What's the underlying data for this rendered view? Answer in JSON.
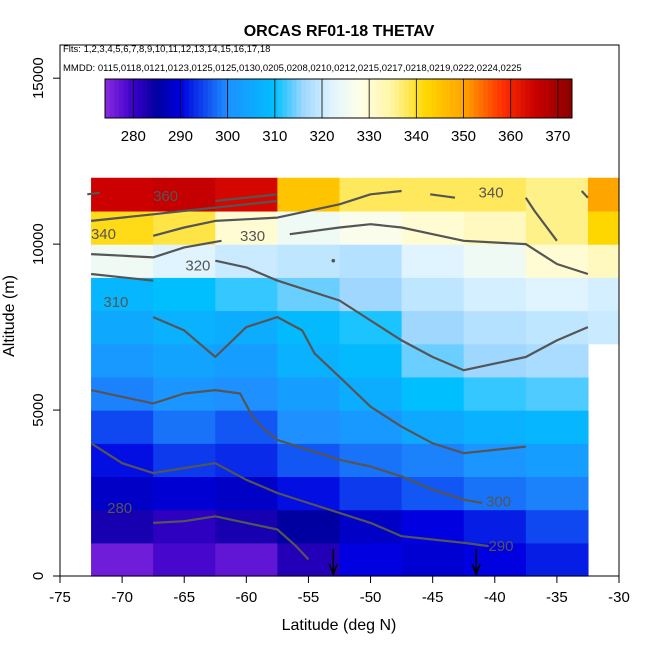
{
  "chart_data": {
    "type": "heatmap",
    "title": "ORCAS RF01-18 THETAV",
    "subtitle_flights": "Flts: 1,2,3,4,5,6,7,8,9,10,11,12,13,14,15,16,17,18",
    "subtitle_dates": "MMDD: 0115,0118,0121,0123,0125,0125,0130,0205,0208,0210,0212,0215,0217,0218,0219,0222,0224,0225",
    "xlabel": "Latitude (deg N)",
    "ylabel": "Altitude (m)",
    "xlim": [
      -75,
      -30
    ],
    "ylim": [
      0,
      16000
    ],
    "x_ticks": [
      -75,
      -70,
      -65,
      -60,
      -55,
      -50,
      -45,
      -40,
      -35,
      -30
    ],
    "y_ticks": [
      0,
      5000,
      10000,
      15000
    ],
    "colorbar": {
      "ticks": [
        280,
        290,
        300,
        310,
        320,
        330,
        340,
        350,
        360,
        370
      ],
      "range": [
        274,
        373
      ],
      "stops": [
        {
          "v": 274,
          "c": "#8a2be2"
        },
        {
          "v": 280,
          "c": "#3a00c8"
        },
        {
          "v": 285,
          "c": "#0000a0"
        },
        {
          "v": 290,
          "c": "#0000e0"
        },
        {
          "v": 300,
          "c": "#1e90ff"
        },
        {
          "v": 310,
          "c": "#00bfff"
        },
        {
          "v": 316,
          "c": "#9fd7ff"
        },
        {
          "v": 322,
          "c": "#dff4ff"
        },
        {
          "v": 328,
          "c": "#ffffe8"
        },
        {
          "v": 335,
          "c": "#fff5a0"
        },
        {
          "v": 342,
          "c": "#ffd700"
        },
        {
          "v": 350,
          "c": "#ffa500"
        },
        {
          "v": 358,
          "c": "#ff3300"
        },
        {
          "v": 365,
          "c": "#cc0000"
        },
        {
          "v": 373,
          "c": "#8b0000"
        }
      ]
    },
    "lat_edges": [
      -75,
      -72.5,
      -67.5,
      -62.5,
      -57.5,
      -52.5,
      -47.5,
      -42.5,
      -37.5,
      -32.5,
      -30
    ],
    "alt_edges": [
      0,
      1000,
      2000,
      3000,
      4000,
      5000,
      6000,
      7000,
      8000,
      9000,
      10000,
      11000,
      12000
    ],
    "values": [
      [
        null,
        276,
        279,
        277,
        282,
        290,
        289,
        290,
        292,
        null
      ],
      [
        null,
        283,
        281,
        283,
        285,
        288,
        290,
        292,
        295,
        null
      ],
      [
        null,
        288,
        289,
        288,
        291,
        294,
        296,
        298,
        299,
        null
      ],
      [
        null,
        291,
        294,
        293,
        296,
        298,
        299,
        301,
        303,
        null
      ],
      [
        null,
        295,
        298,
        296,
        300,
        302,
        305,
        307,
        308,
        null
      ],
      [
        null,
        299,
        301,
        300,
        303,
        306,
        310,
        312,
        313,
        null
      ],
      [
        null,
        302,
        304,
        303,
        307,
        309,
        314,
        316,
        317,
        null
      ],
      [
        null,
        305,
        307,
        306,
        309,
        311,
        316,
        318,
        319,
        320
      ],
      [
        null,
        308,
        310,
        312,
        314,
        316,
        319,
        321,
        322,
        321
      ],
      [
        null,
        325,
        322,
        320,
        319,
        318,
        322,
        325,
        330,
        332
      ],
      [
        null,
        341,
        339,
        330,
        325,
        327,
        330,
        332,
        336,
        342
      ],
      [
        null,
        365,
        366,
        364,
        345,
        338,
        338,
        338,
        336,
        350
      ]
    ],
    "contours": [
      {
        "label": "280",
        "label_at": [
          -70.2,
          1900
        ],
        "points": [
          [
            -67.5,
            1600
          ],
          [
            -65,
            1650
          ],
          [
            -62.5,
            1800
          ],
          [
            -60,
            1600
          ],
          [
            -57.5,
            1400
          ],
          [
            -56,
            900
          ],
          [
            -55,
            500
          ]
        ]
      },
      {
        "label": "290",
        "label_at": [
          -39.5,
          750
        ],
        "points": [
          [
            -72.5,
            4000
          ],
          [
            -70,
            3400
          ],
          [
            -67.5,
            3100
          ],
          [
            -65,
            3250
          ],
          [
            -62.5,
            3400
          ],
          [
            -60,
            2900
          ],
          [
            -57.5,
            2500
          ],
          [
            -55,
            2200
          ],
          [
            -52.5,
            1900
          ],
          [
            -50,
            1600
          ],
          [
            -47.5,
            1200
          ],
          [
            -45,
            1100
          ],
          [
            -42.5,
            1000
          ],
          [
            -40.5,
            900
          ]
        ]
      },
      {
        "label": "300",
        "label_at": [
          -39.7,
          2100
        ],
        "points": [
          [
            -72.5,
            5600
          ],
          [
            -70,
            5400
          ],
          [
            -67.5,
            5200
          ],
          [
            -65,
            5500
          ],
          [
            -62.5,
            5600
          ],
          [
            -60.5,
            5500
          ],
          [
            -59.5,
            4800
          ],
          [
            -58.5,
            4400
          ],
          [
            -57.5,
            4100
          ],
          [
            -55,
            3800
          ],
          [
            -52.5,
            3500
          ],
          [
            -50,
            3300
          ],
          [
            -47.5,
            3000
          ],
          [
            -45,
            2600
          ],
          [
            -42.5,
            2300
          ],
          [
            -41,
            2200
          ]
        ]
      },
      {
        "label": "",
        "label_at": null,
        "points": [
          [
            -67.5,
            7800
          ],
          [
            -65,
            7400
          ],
          [
            -62.5,
            6600
          ],
          [
            -60,
            7500
          ],
          [
            -57.5,
            7800
          ],
          [
            -55.5,
            7400
          ],
          [
            -54.5,
            6700
          ],
          [
            -52.5,
            6000
          ],
          [
            -50,
            5100
          ],
          [
            -47.5,
            4500
          ],
          [
            -45,
            4000
          ],
          [
            -42.5,
            3700
          ],
          [
            -40,
            3800
          ],
          [
            -37.5,
            3900
          ]
        ]
      },
      {
        "label": "310",
        "label_at": [
          -70.5,
          8100
        ],
        "points": [
          [
            -62.5,
            9500
          ],
          [
            -60,
            9300
          ],
          [
            -57.5,
            8900
          ],
          [
            -55,
            8600
          ],
          [
            -52.5,
            8300
          ],
          [
            -50,
            7700
          ],
          [
            -47.5,
            7100
          ],
          [
            -45,
            6600
          ],
          [
            -42.5,
            6200
          ],
          [
            -40,
            6400
          ],
          [
            -37.5,
            6600
          ],
          [
            -35,
            7100
          ],
          [
            -32.5,
            7500
          ]
        ]
      },
      {
        "label": "320",
        "label_at": [
          -63.9,
          9200
        ],
        "points": [
          [
            -72.5,
            9100
          ],
          [
            -70,
            9000
          ],
          [
            -67.5,
            8900
          ]
        ]
      },
      {
        "label": "330",
        "label_at": [
          -59.5,
          10100
        ],
        "points": [
          [
            -72.5,
            9700
          ],
          [
            -70,
            9650
          ],
          [
            -67.5,
            9600
          ],
          [
            -65,
            9900
          ],
          [
            -62,
            10100
          ]
        ]
      },
      {
        "label": "",
        "label_at": null,
        "points": [
          [
            -56.5,
            10300
          ],
          [
            -52.5,
            10500
          ],
          [
            -50,
            10600
          ],
          [
            -47.5,
            10500
          ],
          [
            -45,
            10300
          ],
          [
            -42.5,
            10100
          ],
          [
            -40,
            10050
          ],
          [
            -37.5,
            10000
          ],
          [
            -35,
            9400
          ],
          [
            -32.5,
            9100
          ]
        ]
      },
      {
        "label": "340",
        "label_at": [
          -71.5,
          10150
        ],
        "points": [
          [
            -67.5,
            10250
          ],
          [
            -65,
            10500
          ],
          [
            -62.5,
            10700
          ],
          [
            -57.5,
            10800
          ],
          [
            -55,
            11000
          ],
          [
            -52.5,
            11200
          ],
          [
            -50,
            11500
          ],
          [
            -47.5,
            11600
          ]
        ]
      },
      {
        "label": "",
        "label_at": null,
        "points": [
          [
            -72.5,
            10700
          ],
          [
            -70,
            10800
          ],
          [
            -67.5,
            10900
          ],
          [
            -65,
            11000
          ],
          [
            -62.5,
            11100
          ],
          [
            -60,
            11200
          ],
          [
            -57.5,
            11300
          ]
        ]
      },
      {
        "label": "360",
        "label_at": [
          -66.5,
          11300
        ],
        "points": [
          [
            -62.5,
            11300
          ],
          [
            -60,
            11400
          ],
          [
            -57.5,
            11500
          ]
        ]
      },
      {
        "label": "",
        "label_at": null,
        "points": [
          [
            -72.8,
            11500
          ],
          [
            -71.8,
            11550
          ]
        ]
      },
      {
        "label": "340",
        "label_at": [
          -40.3,
          11400
        ],
        "points": [
          [
            -37.5,
            11400
          ],
          [
            -36.8,
            11000
          ],
          [
            -35,
            10100
          ]
        ]
      },
      {
        "label": "",
        "label_at": null,
        "points": [
          [
            -45.2,
            11500
          ],
          [
            -43.2,
            11400
          ]
        ]
      },
      {
        "label": "",
        "label_at": null,
        "points": [
          [
            -33,
            11600
          ],
          [
            -32.5,
            11400
          ]
        ]
      }
    ],
    "markers": [
      {
        "lat": -53,
        "alt_top": 700,
        "alt_bottom": 0
      },
      {
        "lat": -41.5,
        "alt_top": 700,
        "alt_bottom": 0
      }
    ],
    "small_dot": {
      "lat": -53,
      "alt": 9500
    },
    "colors": {
      "contour": "#555555",
      "axis": "#000000"
    }
  }
}
